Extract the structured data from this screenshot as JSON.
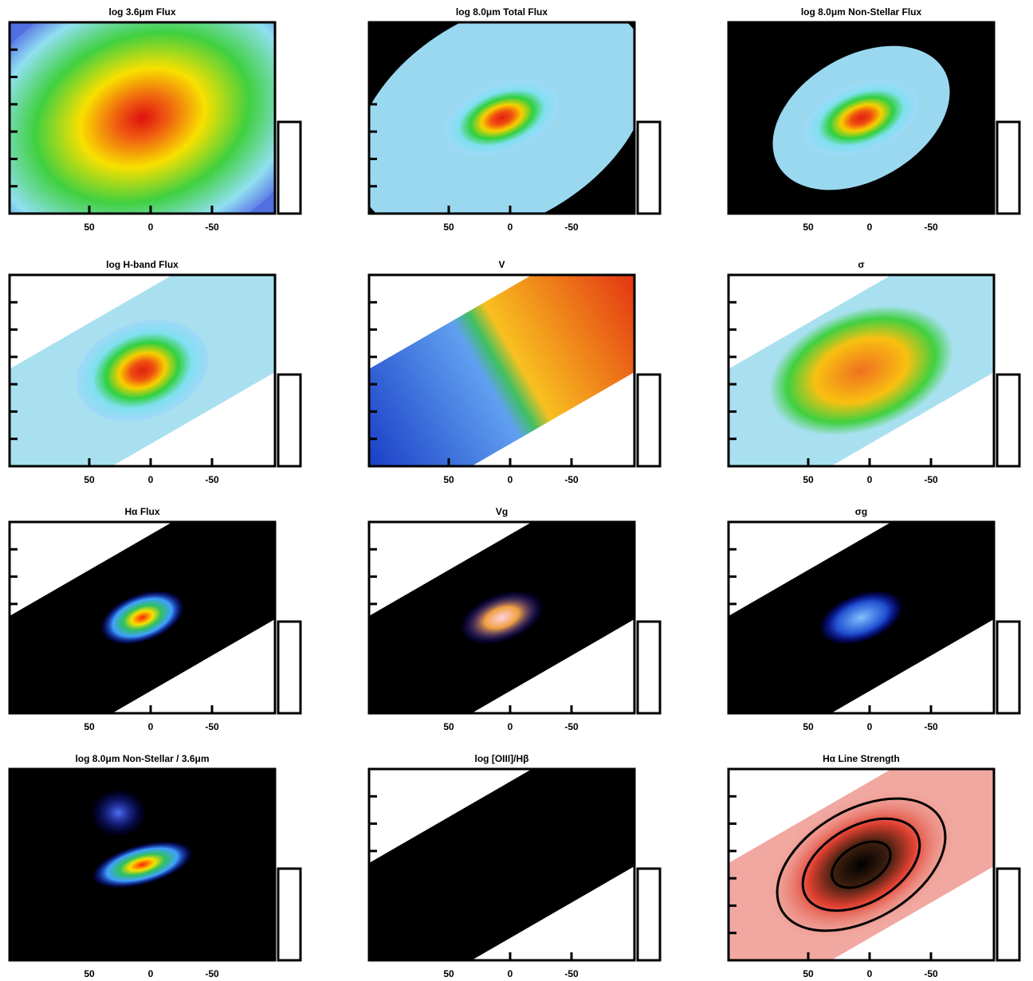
{
  "panels": [
    {
      "title": "log 3.6μm Flux",
      "xtick_labels": [
        "50",
        "0",
        "-50"
      ]
    },
    {
      "title": "log 8.0μm Total Flux",
      "xtick_labels": [
        "50",
        "0",
        "-50"
      ]
    },
    {
      "title": "log 8.0μm Non-Stellar Flux",
      "xtick_labels": [
        "50",
        "0",
        "-50"
      ]
    },
    {
      "title": "log H-band Flux",
      "xtick_labels": [
        "50",
        "0",
        "-50"
      ]
    },
    {
      "title": "V",
      "xtick_labels": [
        "50",
        "0",
        "-50"
      ]
    },
    {
      "title": "σ",
      "xtick_labels": [
        "50",
        "0",
        "-50"
      ]
    },
    {
      "title": "Hα Flux",
      "xtick_labels": [
        "50",
        "0",
        "-50"
      ]
    },
    {
      "title": "Vg",
      "xtick_labels": [
        "50",
        "0",
        "-50"
      ]
    },
    {
      "title": "σg",
      "xtick_labels": [
        "50",
        "0",
        "-50"
      ]
    },
    {
      "title": "log 8.0μm Non-Stellar / 3.6μm",
      "xtick_labels": [
        "50",
        "0",
        "-50"
      ]
    },
    {
      "title": "log [OIII]/Hβ",
      "xtick_labels": [
        "50",
        "0",
        "-50"
      ]
    },
    {
      "title": "Hα Line Strength",
      "xtick_labels": [
        "50",
        "0",
        "-50"
      ]
    }
  ]
}
